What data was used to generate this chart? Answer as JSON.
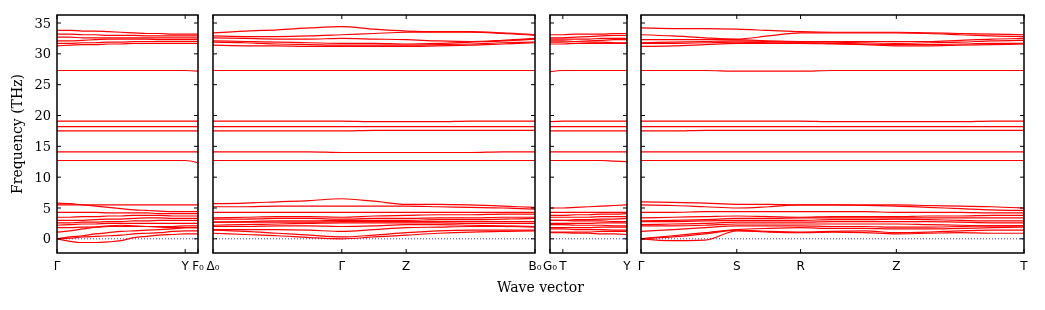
{
  "chart_data": [
    {
      "type": "line",
      "ylabel": "Frequency (THz)",
      "categories": [
        "Γ",
        null,
        null,
        null,
        null,
        null,
        null,
        null,
        null,
        null,
        "Y",
        "F₀"
      ],
      "ylim": [
        -2.3,
        36.3
      ],
      "yticks": [
        0,
        5,
        10,
        15,
        20,
        25,
        30,
        35
      ],
      "ref_lines": [
        {
          "axis": "y",
          "value": 0,
          "color": "#0000ff",
          "line_style": "dotted"
        }
      ],
      "series": [
        {
          "color": "#ff0000",
          "values": [
            33.8,
            33.8,
            33.7,
            33.7,
            33.6,
            33.5,
            33.4,
            33.3,
            33.3,
            33.2,
            33.2,
            33.2
          ]
        },
        {
          "color": "#ff0000",
          "values": [
            33.2,
            33.2,
            33.1,
            33.1,
            33.0,
            33.0,
            33.0,
            32.9,
            32.9,
            32.9,
            32.9,
            32.9
          ]
        },
        {
          "color": "#ff0000",
          "values": [
            32.7,
            32.7,
            32.6,
            32.6,
            32.6,
            32.6,
            32.6,
            32.6,
            32.6,
            32.6,
            32.6,
            32.6
          ]
        },
        {
          "color": "#ff0000",
          "values": [
            32.1,
            32.1,
            32.2,
            32.3,
            32.4,
            32.4,
            32.4,
            32.4,
            32.3,
            32.3,
            32.3,
            32.3
          ]
        },
        {
          "color": "#ff0000",
          "values": [
            31.7,
            31.7,
            31.8,
            31.8,
            31.9,
            31.9,
            32.0,
            32.0,
            32.0,
            32.0,
            32.0,
            32.0
          ]
        },
        {
          "color": "#ff0000",
          "values": [
            31.3,
            31.4,
            31.5,
            31.5,
            31.6,
            31.6,
            31.7,
            31.7,
            31.7,
            31.7,
            31.7,
            31.7
          ]
        },
        {
          "color": "#ff0000",
          "values": [
            27.3,
            27.3,
            27.3,
            27.3,
            27.3,
            27.3,
            27.3,
            27.3,
            27.3,
            27.3,
            27.3,
            27.2
          ]
        },
        {
          "color": "#ff0000",
          "values": [
            19.1,
            19.1,
            19.1,
            19.1,
            19.1,
            19.1,
            19.1,
            19.1,
            19.1,
            19.1,
            19.1,
            19.1
          ]
        },
        {
          "color": "#ff0000",
          "values": [
            18.2,
            18.2,
            18.2,
            18.2,
            18.2,
            18.2,
            18.2,
            18.2,
            18.2,
            18.2,
            18.2,
            18.2
          ]
        },
        {
          "color": "#ff0000",
          "values": [
            17.5,
            17.5,
            17.5,
            17.5,
            17.5,
            17.5,
            17.5,
            17.5,
            17.5,
            17.5,
            17.5,
            17.5
          ]
        },
        {
          "color": "#ff0000",
          "values": [
            14.1,
            14.1,
            14.1,
            14.1,
            14.1,
            14.1,
            14.1,
            14.1,
            14.1,
            14.1,
            14.1,
            14.1
          ]
        },
        {
          "color": "#ff0000",
          "values": [
            12.7,
            12.7,
            12.7,
            12.7,
            12.7,
            12.7,
            12.7,
            12.7,
            12.7,
            12.7,
            12.7,
            12.3
          ]
        },
        {
          "color": "#ff0000",
          "values": [
            5.8,
            5.7,
            5.5,
            5.3,
            5.1,
            4.9,
            4.7,
            4.6,
            4.5,
            4.4,
            4.4,
            4.4
          ]
        },
        {
          "color": "#ff0000",
          "values": [
            5.5,
            5.5,
            5.5,
            5.5,
            5.5,
            5.5,
            5.5,
            5.5,
            5.5,
            5.5,
            5.5,
            5.5
          ]
        },
        {
          "color": "#ff0000",
          "values": [
            4.3,
            4.3,
            4.3,
            4.3,
            4.2,
            4.2,
            4.2,
            4.2,
            4.1,
            4.1,
            4.1,
            4.1
          ]
        },
        {
          "color": "#ff0000",
          "values": [
            3.5,
            3.5,
            3.6,
            3.6,
            3.7,
            3.7,
            3.8,
            3.8,
            3.8,
            3.7,
            3.7,
            3.7
          ]
        },
        {
          "color": "#ff0000",
          "values": [
            3.0,
            3.0,
            3.0,
            3.1,
            3.2,
            3.2,
            3.3,
            3.4,
            3.4,
            3.3,
            3.3,
            3.3
          ]
        },
        {
          "color": "#ff0000",
          "values": [
            2.6,
            2.6,
            2.7,
            2.7,
            2.8,
            2.8,
            2.9,
            2.9,
            3.0,
            3.0,
            3.0,
            3.0
          ]
        },
        {
          "color": "#ff0000",
          "values": [
            2.2,
            2.3,
            2.4,
            2.4,
            2.5,
            2.5,
            2.5,
            2.5,
            2.5,
            2.5,
            2.5,
            2.5
          ]
        },
        {
          "color": "#ff0000",
          "values": [
            1.8,
            1.8,
            1.9,
            1.9,
            2.0,
            2.0,
            2.0,
            2.0,
            2.0,
            2.0,
            2.1,
            2.1
          ]
        },
        {
          "color": "#ff0000",
          "values": [
            1.1,
            1.3,
            1.6,
            1.9,
            2.1,
            2.2,
            2.1,
            2.0,
            1.9,
            1.8,
            1.8,
            1.8
          ]
        },
        {
          "color": "#ff0000",
          "values": [
            0,
            0.3,
            0.5,
            0.8,
            1.0,
            1.2,
            1.3,
            1.4,
            1.5,
            1.6,
            1.8,
            1.8
          ]
        },
        {
          "color": "#ff0000",
          "values": [
            0,
            0.1,
            0.3,
            0.4,
            0.5,
            0.6,
            0.8,
            0.9,
            1.0,
            1.2,
            1.3,
            1.3
          ]
        },
        {
          "color": "#ff0000",
          "values": [
            0,
            -0.4,
            -0.6,
            -0.6,
            -0.5,
            -0.3,
            0.2,
            0.4,
            0.6,
            0.7,
            0.8,
            0.8
          ]
        }
      ]
    },
    {
      "type": "line",
      "xlabel": "Wave vector",
      "tick_labels": "x",
      "categories": [
        "Δ₀",
        null,
        null,
        null,
        "Γ",
        null,
        "Z",
        null,
        null,
        null,
        "B₀"
      ],
      "ylim": [
        -2.3,
        36.3
      ],
      "yticks": [
        0,
        5,
        10,
        15,
        20,
        25,
        30,
        35
      ],
      "ref_lines": [
        {
          "axis": "y",
          "value": 0,
          "color": "#0000ff",
          "line_style": "dotted"
        }
      ],
      "series": [
        {
          "color": "#ff0000",
          "values": [
            33.4,
            33.7,
            33.9,
            34.2,
            34.4,
            34.0,
            33.7,
            33.6,
            33.6,
            33.4,
            33.1
          ]
        },
        {
          "color": "#ff0000",
          "values": [
            32.9,
            32.8,
            32.8,
            32.9,
            33.1,
            33.3,
            33.5,
            33.5,
            33.5,
            33.3,
            33.0
          ]
        },
        {
          "color": "#ff0000",
          "values": [
            32.6,
            32.5,
            32.4,
            32.4,
            32.5,
            32.4,
            32.3,
            32.1,
            32.0,
            32.2,
            32.5
          ]
        },
        {
          "color": "#ff0000",
          "values": [
            32.1,
            32.0,
            31.9,
            31.8,
            31.7,
            31.7,
            31.6,
            31.7,
            31.9,
            32.1,
            32.4
          ]
        },
        {
          "color": "#ff0000",
          "values": [
            31.9,
            31.8,
            31.6,
            31.5,
            31.4,
            31.4,
            31.4,
            31.5,
            31.6,
            31.8,
            31.9
          ]
        },
        {
          "color": "#ff0000",
          "values": [
            31.4,
            31.3,
            31.3,
            31.2,
            31.2,
            31.2,
            31.2,
            31.3,
            31.4,
            31.6,
            31.8
          ]
        },
        {
          "color": "#ff0000",
          "values": [
            27.3,
            27.3,
            27.3,
            27.3,
            27.3,
            27.3,
            27.3,
            27.3,
            27.3,
            27.3,
            27.3
          ]
        },
        {
          "color": "#ff0000",
          "values": [
            19.1,
            19.1,
            19.1,
            19.1,
            19.1,
            19.0,
            19.0,
            19.0,
            19.1,
            19.1,
            19.1
          ]
        },
        {
          "color": "#ff0000",
          "values": [
            18.2,
            18.2,
            18.2,
            18.2,
            18.2,
            18.2,
            18.2,
            18.2,
            18.2,
            18.2,
            18.2
          ]
        },
        {
          "color": "#ff0000",
          "values": [
            17.5,
            17.5,
            17.5,
            17.5,
            17.5,
            17.6,
            17.6,
            17.6,
            17.6,
            17.6,
            17.6
          ]
        },
        {
          "color": "#ff0000",
          "values": [
            14.1,
            14.1,
            14.1,
            14.1,
            14.0,
            14.0,
            14.0,
            14.0,
            14.0,
            14.1,
            14.1
          ]
        },
        {
          "color": "#ff0000",
          "values": [
            12.7,
            12.7,
            12.7,
            12.7,
            12.7,
            12.7,
            12.7,
            12.7,
            12.7,
            12.7,
            12.7
          ]
        },
        {
          "color": "#ff0000",
          "values": [
            5.7,
            5.8,
            6.0,
            6.2,
            6.5,
            6.1,
            5.6,
            5.6,
            5.5,
            5.3,
            5.1
          ]
        },
        {
          "color": "#ff0000",
          "values": [
            5.2,
            5.2,
            5.3,
            5.3,
            5.3,
            5.3,
            5.3,
            5.2,
            5.1,
            5.0,
            4.8
          ]
        },
        {
          "color": "#ff0000",
          "values": [
            4.3,
            4.3,
            4.3,
            4.3,
            4.3,
            4.3,
            4.3,
            4.3,
            4.3,
            4.3,
            4.3
          ]
        },
        {
          "color": "#ff0000",
          "values": [
            3.4,
            3.5,
            3.6,
            3.6,
            3.5,
            3.7,
            3.8,
            3.9,
            3.9,
            4.0,
            4.0
          ]
        },
        {
          "color": "#ff0000",
          "values": [
            3.2,
            3.2,
            3.3,
            3.3,
            3.2,
            3.3,
            3.3,
            3.4,
            3.4,
            3.5,
            3.5
          ]
        },
        {
          "color": "#ff0000",
          "values": [
            2.7,
            2.8,
            2.9,
            2.9,
            3.0,
            3.0,
            3.0,
            3.1,
            3.1,
            3.2,
            3.3
          ]
        },
        {
          "color": "#ff0000",
          "values": [
            2.7,
            2.7,
            2.7,
            2.7,
            2.8,
            2.8,
            2.8,
            2.8,
            2.8,
            2.8,
            2.8
          ]
        },
        {
          "color": "#ff0000",
          "values": [
            2.2,
            2.3,
            2.4,
            2.5,
            2.6,
            2.6,
            2.6,
            2.6,
            2.5,
            2.5,
            2.5
          ]
        },
        {
          "color": "#ff0000",
          "values": [
            2.0,
            2.0,
            2.1,
            2.1,
            2.0,
            2.1,
            2.3,
            2.3,
            2.2,
            2.1,
            2.0
          ]
        },
        {
          "color": "#ff0000",
          "values": [
            1.5,
            1.5,
            1.5,
            1.4,
            1.2,
            1.5,
            1.8,
            1.9,
            2.0,
            2.0,
            1.9
          ]
        },
        {
          "color": "#ff0000",
          "values": [
            1.4,
            1.2,
            0.9,
            0.6,
            0.3,
            0.6,
            1.0,
            1.3,
            1.4,
            1.4,
            1.4
          ]
        },
        {
          "color": "#ff0000",
          "values": [
            0.9,
            0.7,
            0.5,
            0.2,
            0,
            0.3,
            0.6,
            0.9,
            1.1,
            1.2,
            1.3
          ]
        }
      ]
    },
    {
      "type": "line",
      "tick_labels": "x",
      "categories": [
        "G₀",
        "T",
        null,
        null,
        null,
        null,
        "Y"
      ],
      "ylim": [
        -2.3,
        36.3
      ],
      "yticks": [
        0,
        5,
        10,
        15,
        20,
        25,
        30,
        35
      ],
      "ref_lines": [
        {
          "axis": "y",
          "value": 0,
          "color": "#0000ff",
          "line_style": "dotted"
        }
      ],
      "series": [
        {
          "color": "#ff0000",
          "values": [
            33.1,
            33.1,
            33.2,
            33.2,
            33.2,
            33.3,
            33.3
          ]
        },
        {
          "color": "#ff0000",
          "values": [
            32.6,
            32.6,
            32.7,
            32.8,
            32.9,
            33.0,
            33.0
          ]
        },
        {
          "color": "#ff0000",
          "values": [
            32.4,
            32.4,
            32.4,
            32.4,
            32.5,
            32.5,
            32.5
          ]
        },
        {
          "color": "#ff0000",
          "values": [
            31.9,
            31.9,
            32.0,
            32.1,
            32.2,
            32.3,
            32.3
          ]
        },
        {
          "color": "#ff0000",
          "values": [
            32.1,
            32.1,
            32.0,
            31.9,
            31.9,
            31.8,
            31.8
          ]
        },
        {
          "color": "#ff0000",
          "values": [
            31.6,
            31.6,
            31.7,
            31.7,
            31.7,
            31.7,
            31.7
          ]
        },
        {
          "color": "#ff0000",
          "values": [
            27.1,
            27.3,
            27.3,
            27.3,
            27.3,
            27.3,
            27.3
          ]
        },
        {
          "color": "#ff0000",
          "values": [
            19.0,
            19.1,
            19.1,
            19.1,
            19.1,
            19.1,
            19.1
          ]
        },
        {
          "color": "#ff0000",
          "values": [
            18.2,
            18.2,
            18.2,
            18.2,
            18.2,
            18.2,
            18.2
          ]
        },
        {
          "color": "#ff0000",
          "values": [
            17.5,
            17.5,
            17.5,
            17.5,
            17.5,
            17.5,
            17.5
          ]
        },
        {
          "color": "#ff0000",
          "values": [
            14.1,
            14.1,
            14.1,
            14.1,
            14.1,
            14.1,
            14.1
          ]
        },
        {
          "color": "#ff0000",
          "values": [
            12.7,
            12.7,
            12.7,
            12.7,
            12.7,
            12.6,
            12.5
          ]
        },
        {
          "color": "#ff0000",
          "values": [
            5.0,
            5.0,
            5.1,
            5.2,
            5.3,
            5.4,
            5.5
          ]
        },
        {
          "color": "#ff0000",
          "values": [
            4.3,
            4.3,
            4.3,
            4.3,
            4.3,
            4.3,
            4.3
          ]
        },
        {
          "color": "#ff0000",
          "values": [
            3.8,
            3.8,
            3.9,
            3.9,
            4.0,
            4.0,
            4.1
          ]
        },
        {
          "color": "#ff0000",
          "values": [
            3.5,
            3.5,
            3.5,
            3.5,
            3.6,
            3.6,
            3.6
          ]
        },
        {
          "color": "#ff0000",
          "values": [
            3.0,
            3.0,
            3.1,
            3.1,
            3.2,
            3.2,
            3.3
          ]
        },
        {
          "color": "#ff0000",
          "values": [
            3.0,
            3.0,
            2.9,
            2.9,
            2.9,
            2.8,
            2.8
          ]
        },
        {
          "color": "#ff0000",
          "values": [
            2.5,
            2.5,
            2.5,
            2.5,
            2.6,
            2.6,
            2.6
          ]
        },
        {
          "color": "#ff0000",
          "values": [
            2.3,
            2.3,
            2.2,
            2.2,
            2.2,
            2.1,
            2.1
          ]
        },
        {
          "color": "#ff0000",
          "values": [
            1.8,
            1.8,
            1.8,
            1.8,
            1.9,
            1.9,
            1.9
          ]
        },
        {
          "color": "#ff0000",
          "values": [
            1.6,
            1.6,
            1.5,
            1.5,
            1.5,
            1.4,
            1.4
          ]
        },
        {
          "color": "#ff0000",
          "values": [
            1.1,
            1.1,
            1.1,
            1.1,
            1.2,
            1.2,
            1.2
          ]
        },
        {
          "color": "#ff0000",
          "values": [
            1.0,
            1.0,
            0.9,
            0.9,
            0.8,
            0.8,
            0.7
          ]
        }
      ]
    },
    {
      "type": "line",
      "tick_labels": "x",
      "categories": [
        "Γ",
        null,
        null,
        "S",
        null,
        "R",
        null,
        null,
        "Z",
        null,
        null,
        null,
        "T"
      ],
      "ylim": [
        -2.3,
        36.3
      ],
      "yticks": [
        0,
        5,
        10,
        15,
        20,
        25,
        30,
        35
      ],
      "ref_lines": [
        {
          "axis": "y",
          "value": 0,
          "color": "#0000ff",
          "line_style": "dotted"
        }
      ],
      "series": [
        {
          "color": "#ff0000",
          "values": [
            34.2,
            34.1,
            34.1,
            34.0,
            33.8,
            33.6,
            33.5,
            33.5,
            33.5,
            33.4,
            33.3,
            33.2,
            33.1
          ]
        },
        {
          "color": "#ff0000",
          "values": [
            33.1,
            32.9,
            32.6,
            32.4,
            32.9,
            33.4,
            33.4,
            33.4,
            33.4,
            33.3,
            33.1,
            32.9,
            32.8
          ]
        },
        {
          "color": "#ff0000",
          "values": [
            32.3,
            32.3,
            32.3,
            32.3,
            32.1,
            32.0,
            32.0,
            32.0,
            32.0,
            32.0,
            32.2,
            32.4,
            32.5
          ]
        },
        {
          "color": "#ff0000",
          "values": [
            31.8,
            31.9,
            32.0,
            32.1,
            32.0,
            31.9,
            31.9,
            31.8,
            31.7,
            31.8,
            31.9,
            32.1,
            32.2
          ]
        },
        {
          "color": "#ff0000",
          "values": [
            31.7,
            31.7,
            31.8,
            31.9,
            31.8,
            31.8,
            31.7,
            31.6,
            31.5,
            31.5,
            31.6,
            31.7,
            31.7
          ]
        },
        {
          "color": "#ff0000",
          "values": [
            31.2,
            31.3,
            31.5,
            31.7,
            31.7,
            31.7,
            31.6,
            31.5,
            31.3,
            31.3,
            31.4,
            31.5,
            31.6
          ]
        },
        {
          "color": "#ff0000",
          "values": [
            27.3,
            27.3,
            27.3,
            27.2,
            27.2,
            27.2,
            27.3,
            27.3,
            27.3,
            27.3,
            27.3,
            27.3,
            27.3
          ]
        },
        {
          "color": "#ff0000",
          "values": [
            19.1,
            19.1,
            19.1,
            19.1,
            19.1,
            19.1,
            19.0,
            19.0,
            19.0,
            19.0,
            19.0,
            19.1,
            19.1
          ]
        },
        {
          "color": "#ff0000",
          "values": [
            18.2,
            18.2,
            18.2,
            18.2,
            18.2,
            18.2,
            18.2,
            18.2,
            18.2,
            18.2,
            18.2,
            18.2,
            18.2
          ]
        },
        {
          "color": "#ff0000",
          "values": [
            17.5,
            17.5,
            17.6,
            17.6,
            17.6,
            17.6,
            17.6,
            17.6,
            17.6,
            17.6,
            17.6,
            17.6,
            17.6
          ]
        },
        {
          "color": "#ff0000",
          "values": [
            14.1,
            14.1,
            14.1,
            14.1,
            14.1,
            14.1,
            14.1,
            14.1,
            14.1,
            14.1,
            14.1,
            14.1,
            14.1
          ]
        },
        {
          "color": "#ff0000",
          "values": [
            12.7,
            12.7,
            12.7,
            12.7,
            12.7,
            12.7,
            12.7,
            12.7,
            12.7,
            12.7,
            12.7,
            12.7,
            12.7
          ]
        },
        {
          "color": "#ff0000",
          "values": [
            6.0,
            5.9,
            5.8,
            5.6,
            5.6,
            5.5,
            5.5,
            5.5,
            5.5,
            5.4,
            5.3,
            5.2,
            5.0
          ]
        },
        {
          "color": "#ff0000",
          "values": [
            5.5,
            5.4,
            5.2,
            5.0,
            5.2,
            5.5,
            5.5,
            5.4,
            5.3,
            5.1,
            4.9,
            4.7,
            4.6
          ]
        },
        {
          "color": "#ff0000",
          "values": [
            4.3,
            4.3,
            4.4,
            4.4,
            4.4,
            4.4,
            4.4,
            4.4,
            4.3,
            4.3,
            4.3,
            4.2,
            4.2
          ]
        },
        {
          "color": "#ff0000",
          "values": [
            3.4,
            3.5,
            3.6,
            3.7,
            3.6,
            3.5,
            3.6,
            3.6,
            3.6,
            3.7,
            3.7,
            3.8,
            3.8
          ]
        },
        {
          "color": "#ff0000",
          "values": [
            2.9,
            3.0,
            3.1,
            3.3,
            3.3,
            3.4,
            3.4,
            3.4,
            3.4,
            3.4,
            3.4,
            3.4,
            3.4
          ]
        },
        {
          "color": "#ff0000",
          "values": [
            2.8,
            2.8,
            2.9,
            3.0,
            3.0,
            3.0,
            3.1,
            3.1,
            3.2,
            3.1,
            3.0,
            2.9,
            2.9
          ]
        },
        {
          "color": "#ff0000",
          "values": [
            2.3,
            2.4,
            2.5,
            2.7,
            2.7,
            2.7,
            2.8,
            2.8,
            2.8,
            2.8,
            2.7,
            2.6,
            2.6
          ]
        },
        {
          "color": "#ff0000",
          "values": [
            2.1,
            2.1,
            2.2,
            2.4,
            2.4,
            2.4,
            2.4,
            2.4,
            2.4,
            2.3,
            2.2,
            2.1,
            2.1
          ]
        },
        {
          "color": "#ff0000",
          "values": [
            1.2,
            1.5,
            1.8,
            2.1,
            2.1,
            2.1,
            2.0,
            2.0,
            1.9,
            1.9,
            2.0,
            2.1,
            2.1
          ]
        },
        {
          "color": "#ff0000",
          "values": [
            0,
            0.5,
            1.0,
            1.5,
            1.7,
            1.8,
            1.7,
            1.7,
            1.6,
            1.6,
            1.7,
            1.8,
            1.9
          ]
        },
        {
          "color": "#ff0000",
          "values": [
            0,
            0.3,
            0.8,
            1.4,
            1.2,
            1.1,
            1.2,
            1.3,
            1.0,
            1.1,
            1.3,
            1.4,
            1.4
          ]
        },
        {
          "color": "#ff0000",
          "values": [
            0,
            -0.3,
            -0.2,
            1.3,
            1.1,
            1.0,
            1.1,
            1.0,
            0.8,
            0.9,
            1.0,
            0.9,
            0.9
          ]
        }
      ]
    }
  ]
}
